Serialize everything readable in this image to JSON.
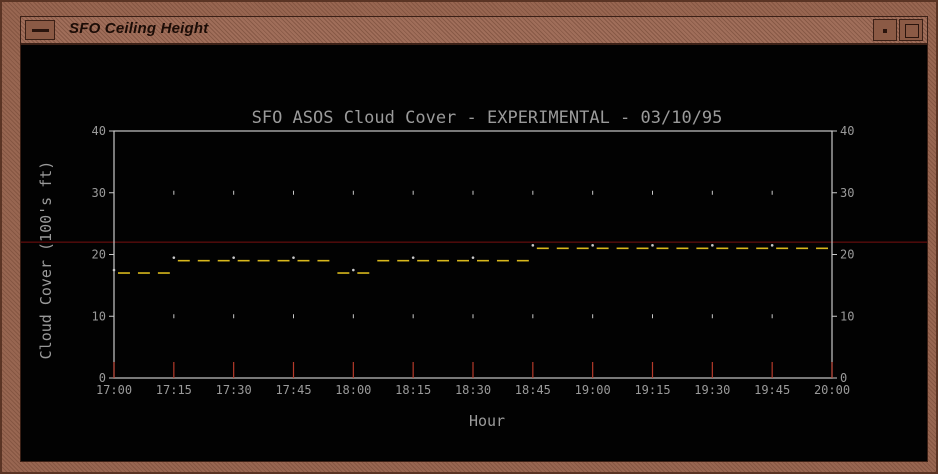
{
  "window": {
    "title": "SFO Ceiling Height",
    "menu_icon": "window-menu-icon",
    "minimize_icon": "minimize-icon",
    "maximize_icon": "maximize-icon"
  },
  "colors": {
    "background": "#020202",
    "axes": "#c9c9c9",
    "text": "#9a9a9a",
    "series": "#d8b81c",
    "grid_marks": "#c9c9c9",
    "red_ticks": "#b53a2a",
    "reference_line": "#7a1010"
  },
  "chart_data": {
    "type": "line",
    "title": "SFO ASOS Cloud Cover - EXPERIMENTAL - 03/10/95",
    "xlabel": "Hour",
    "ylabel": "Cloud Cover (100's ft)",
    "x_tick_labels": [
      "17:00",
      "17:15",
      "17:30",
      "17:45",
      "18:00",
      "18:15",
      "18:30",
      "18:45",
      "19:00",
      "19:15",
      "19:30",
      "19:45",
      "20:00"
    ],
    "y_ticks": [
      0,
      10,
      20,
      30,
      40
    ],
    "ylim": [
      0,
      40
    ],
    "xlim_minutes_after_start": [
      0,
      180
    ],
    "grid": false,
    "series": [
      {
        "x_minutes": [
          0,
          5,
          10,
          15,
          20,
          25,
          30,
          35,
          40,
          45,
          50,
          55,
          60,
          65,
          70,
          75,
          80,
          85,
          90,
          95,
          100,
          105,
          110,
          115,
          120,
          125,
          130,
          135,
          140,
          145,
          150,
          155,
          160,
          165,
          170,
          175,
          180
        ],
        "values": [
          17,
          17,
          17,
          19,
          19,
          19,
          19,
          19,
          19,
          19,
          19,
          17,
          17,
          19,
          19,
          19,
          19,
          19,
          19,
          19,
          19,
          21,
          21,
          21,
          21,
          21,
          21,
          21,
          21,
          21,
          21,
          21,
          21,
          21,
          21,
          21,
          21
        ]
      }
    ],
    "reference_line_value": 22
  }
}
